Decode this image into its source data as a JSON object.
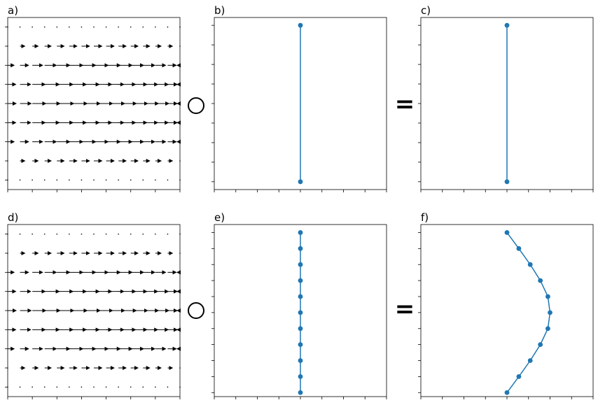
{
  "figure": {
    "operator_symbol": "○",
    "equals_symbol": "="
  },
  "chart_data": [
    {
      "panel": "a",
      "label": "a)",
      "type": "quiver",
      "description": "vector field: velocity u(y) pointing +x, zero at top/bottom rows",
      "xlim": [
        0,
        14
      ],
      "ylim": [
        -0.5,
        8.5
      ],
      "x": [
        0,
        1,
        2,
        3,
        4,
        5,
        6,
        7,
        8,
        9,
        10,
        11,
        12,
        13,
        14
      ],
      "rows": [
        {
          "y": 0,
          "u": 0.0
        },
        {
          "y": 1,
          "u": 0.45
        },
        {
          "y": 2,
          "u": 0.8
        },
        {
          "y": 3,
          "u": 1.0
        },
        {
          "y": 4,
          "u": 1.05
        },
        {
          "y": 5,
          "u": 1.0
        },
        {
          "y": 6,
          "u": 0.8
        },
        {
          "y": 7,
          "u": 0.45
        },
        {
          "y": 8,
          "u": 0.0
        }
      ],
      "xticks": [
        0,
        2,
        4,
        6,
        8,
        10,
        12,
        14
      ],
      "yticks": [
        0,
        1,
        2,
        3,
        4,
        5,
        6,
        7,
        8
      ]
    },
    {
      "panel": "b",
      "label": "b)",
      "type": "line",
      "xlim": [
        -4,
        4
      ],
      "ylim": [
        -0.4,
        8.4
      ],
      "x": [
        0,
        0
      ],
      "y": [
        0,
        8
      ],
      "xticks": [
        -4,
        -3,
        -2,
        -1,
        0,
        1,
        2,
        3,
        4
      ],
      "yticks": [
        0,
        1,
        2,
        3,
        4,
        5,
        6,
        7,
        8
      ]
    },
    {
      "panel": "c",
      "label": "c)",
      "type": "line",
      "xlim": [
        -4,
        4
      ],
      "ylim": [
        -0.4,
        8.4
      ],
      "x": [
        0,
        0
      ],
      "y": [
        0,
        8
      ],
      "xticks": [
        -4,
        -3,
        -2,
        -1,
        0,
        1,
        2,
        3,
        4
      ],
      "yticks": [
        0,
        1,
        2,
        3,
        4,
        5,
        6,
        7,
        8
      ]
    },
    {
      "panel": "d",
      "label": "d)",
      "type": "quiver",
      "description": "vector field: velocity u(y) pointing +x, zero at top/bottom rows",
      "xlim": [
        0,
        14
      ],
      "ylim": [
        -0.5,
        8.5
      ],
      "x": [
        0,
        1,
        2,
        3,
        4,
        5,
        6,
        7,
        8,
        9,
        10,
        11,
        12,
        13,
        14
      ],
      "rows": [
        {
          "y": 0,
          "u": 0.0
        },
        {
          "y": 1,
          "u": 0.45
        },
        {
          "y": 2,
          "u": 0.8
        },
        {
          "y": 3,
          "u": 1.0
        },
        {
          "y": 4,
          "u": 1.05
        },
        {
          "y": 5,
          "u": 1.0
        },
        {
          "y": 6,
          "u": 0.8
        },
        {
          "y": 7,
          "u": 0.45
        },
        {
          "y": 8,
          "u": 0.0
        }
      ],
      "xticks": [
        0,
        2,
        4,
        6,
        8,
        10,
        12,
        14
      ],
      "yticks": [
        0,
        1,
        2,
        3,
        4,
        5,
        6,
        7,
        8
      ]
    },
    {
      "panel": "e",
      "label": "e)",
      "type": "line",
      "xlim": [
        -4,
        4
      ],
      "ylim": [
        -0.25,
        10.5
      ],
      "x": [
        0,
        0,
        0,
        0,
        0,
        0,
        0,
        0,
        0,
        0,
        0
      ],
      "y": [
        0,
        1,
        2,
        3,
        4,
        5,
        6,
        7,
        8,
        9,
        10
      ],
      "xticks": [
        -4,
        -3,
        -2,
        -1,
        0,
        1,
        2,
        3,
        4
      ],
      "yticks": [
        0,
        1,
        2,
        3,
        4,
        5,
        6,
        7,
        8,
        9,
        10
      ]
    },
    {
      "panel": "f",
      "label": "f)",
      "type": "line",
      "xlim": [
        -4,
        4
      ],
      "ylim": [
        -0.25,
        10.5
      ],
      "x": [
        0,
        0.55,
        1.08,
        1.55,
        1.9,
        2.0,
        1.9,
        1.55,
        1.08,
        0.55,
        0
      ],
      "y": [
        0,
        1,
        2,
        3,
        4,
        5,
        6,
        7,
        8,
        9,
        10
      ],
      "xticks": [
        -4,
        -3,
        -2,
        -1,
        0,
        1,
        2,
        3,
        4
      ],
      "yticks": [
        0,
        1,
        2,
        3,
        4,
        5,
        6,
        7,
        8,
        9,
        10
      ]
    }
  ]
}
